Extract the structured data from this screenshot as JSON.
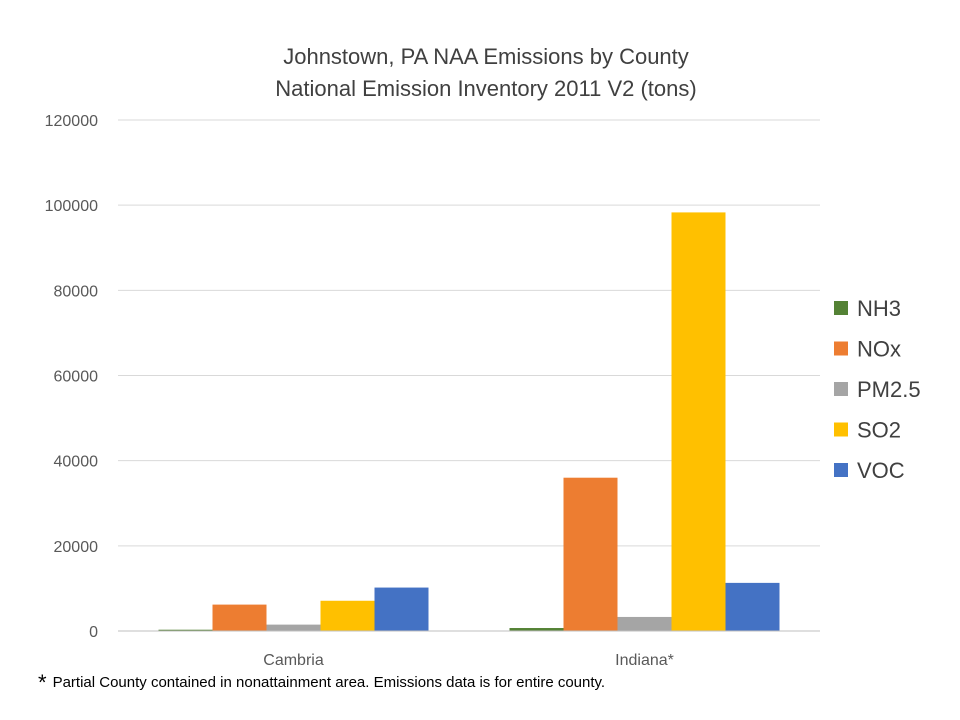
{
  "chart_data": {
    "type": "bar",
    "title_lines": [
      "Johnstown, PA NAA Emissions by County",
      "National Emission Inventory 2011 V2 (tons)"
    ],
    "categories": [
      "Cambria",
      "Indiana*"
    ],
    "series": [
      {
        "name": "NH3",
        "color": "#548235",
        "values": [
          300,
          700
        ]
      },
      {
        "name": "NOx",
        "color": "#ED7D31",
        "values": [
          6200,
          36000
        ]
      },
      {
        "name": "PM2.5",
        "color": "#A5A5A5",
        "values": [
          1500,
          3300
        ]
      },
      {
        "name": "SO2",
        "color": "#FFC000",
        "values": [
          7100,
          98300
        ]
      },
      {
        "name": "VOC",
        "color": "#4472C4",
        "values": [
          10200,
          11300
        ]
      }
    ],
    "ylim": [
      0,
      120000
    ],
    "yticks": [
      0,
      20000,
      40000,
      60000,
      80000,
      100000,
      120000
    ],
    "grid": true,
    "legend_position": "right"
  },
  "footnote": {
    "star": "*",
    "text": "Partial County contained in nonattainment area.  Emissions data is for entire county."
  }
}
